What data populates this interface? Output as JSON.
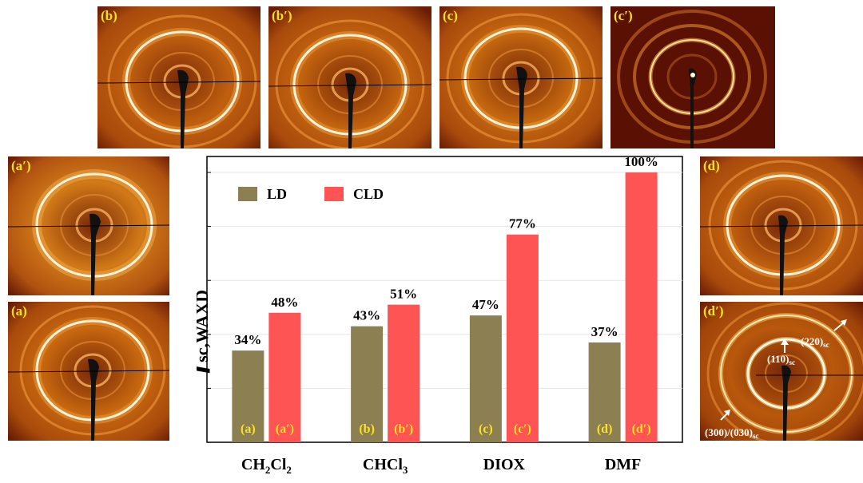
{
  "panels": [
    {
      "id": "b",
      "label": "(b)"
    },
    {
      "id": "b2",
      "label": "(b′)"
    },
    {
      "id": "c",
      "label": "(c)"
    },
    {
      "id": "c2",
      "label": "(c′)"
    },
    {
      "id": "a2",
      "label": "(a′)"
    },
    {
      "id": "a",
      "label": "(a)"
    },
    {
      "id": "d",
      "label": "(d)"
    },
    {
      "id": "d2",
      "label": "(d′)"
    }
  ],
  "annotations": {
    "p110": "(110)",
    "p220": "(220)",
    "p300": "(300)/(030)",
    "sub": "sc"
  },
  "colors": {
    "ld": "#8c8052",
    "cld": "#ff5454",
    "bar_label": "#ffe21a",
    "panel_label": "#ffe21a"
  },
  "chart_data": {
    "type": "bar",
    "categories": [
      "CH2Cl2",
      "CHCl3",
      "DIOX",
      "DMF"
    ],
    "category_display": [
      {
        "main": "CH",
        "sub1": "2",
        "mid": "Cl",
        "sub2": "2"
      },
      {
        "main": "CHCl",
        "sub1": "3",
        "mid": "",
        "sub2": ""
      },
      {
        "main": "DIOX",
        "sub1": "",
        "mid": "",
        "sub2": ""
      },
      {
        "main": "DMF",
        "sub1": "",
        "mid": "",
        "sub2": ""
      }
    ],
    "series": [
      {
        "name": "LD",
        "values": [
          34,
          43,
          47,
          37
        ],
        "bar_labels": [
          "(a)",
          "(b)",
          "(c)",
          "(d)"
        ]
      },
      {
        "name": "CLD",
        "values": [
          48,
          51,
          77,
          100
        ],
        "bar_labels": [
          "(a′)",
          "(b′)",
          "(c′)",
          "(d′)"
        ]
      }
    ],
    "value_labels": [
      [
        "34%",
        "43%",
        "47%",
        "37%"
      ],
      [
        "48%",
        "51%",
        "77%",
        "100%"
      ]
    ],
    "ylabel": "f",
    "ylabel_sub": "sc,WAXD",
    "ylim": [
      0,
      100
    ],
    "yticks": [
      20,
      40,
      60,
      80,
      100
    ],
    "grid": true,
    "legend_position": "top-left"
  }
}
